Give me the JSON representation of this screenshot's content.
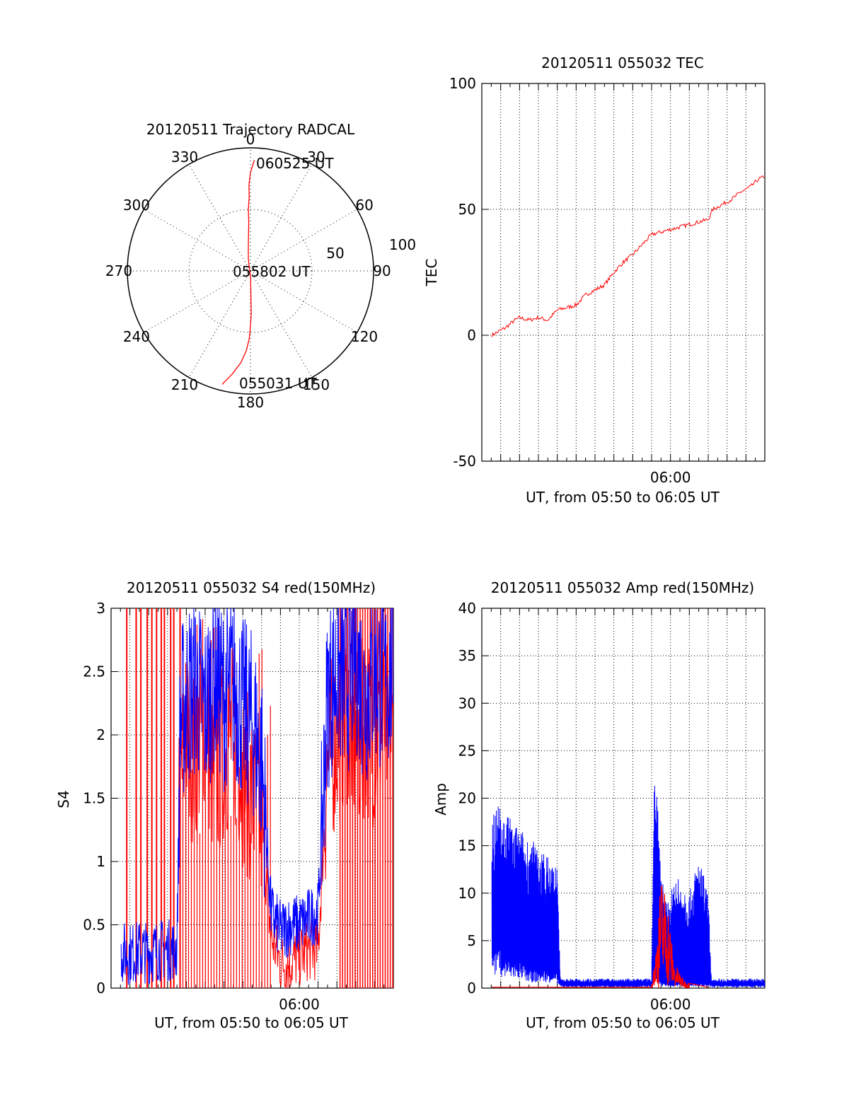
{
  "colors": {
    "red": "#ff0000",
    "blue": "#0000ff",
    "axis": "#000000",
    "grid": "#000000",
    "background": "#ffffff"
  },
  "chart_data": [
    {
      "id": "polar",
      "type": "scatter",
      "title": "20120511 Trajectory RADCAL",
      "projection": "polar",
      "azimuth_labels": [
        "0",
        "30",
        "60",
        "90",
        "120",
        "150",
        "180",
        "210",
        "240",
        "270",
        "300",
        "330"
      ],
      "radial_labels": [
        "50",
        "100"
      ],
      "radial_range": [
        0,
        100
      ],
      "trajectory_label_end": "060525 UT",
      "trajectory_label_mid": "055802 UT",
      "trajectory_label_start": "055031 UT",
      "series": [
        {
          "color": "red",
          "points": [
            [
              194,
              95
            ],
            [
              190,
              85
            ],
            [
              186,
              75
            ],
            [
              183,
              65
            ],
            [
              181,
              55
            ],
            [
              180,
              45
            ],
            [
              179,
              35
            ],
            [
              179,
              25
            ],
            [
              179,
              15
            ],
            [
              179,
              5
            ],
            [
              180,
              5
            ],
            [
              350,
              10
            ],
            [
              355,
              20
            ],
            [
              357,
              30
            ],
            [
              358,
              40
            ],
            [
              358,
              50
            ],
            [
              359,
              60
            ],
            [
              359,
              70
            ],
            [
              0,
              80
            ],
            [
              2,
              90
            ]
          ]
        }
      ]
    },
    {
      "id": "tec",
      "type": "line",
      "title": "20120511 055032 TEC",
      "ylabel": "TEC",
      "xlabel": "UT, from 05:50 to 06:05 UT",
      "xlim": [
        "05:50",
        "06:05"
      ],
      "ylim": [
        -50,
        100
      ],
      "xtick_labels": [
        "06:00"
      ],
      "ytick_labels": [
        "-50",
        "0",
        "50",
        "100"
      ],
      "grid": true,
      "series": [
        {
          "color": "red",
          "x": [
            "05:50:32",
            "05:51:15",
            "05:51:45",
            "05:52:00",
            "05:52:30",
            "05:53:00",
            "05:53:30",
            "05:54:00",
            "05:54:30",
            "05:55:00",
            "05:55:30",
            "05:56:00",
            "05:56:30",
            "05:57:00",
            "05:57:30",
            "05:58:00",
            "05:58:30",
            "05:59:00",
            "05:59:30",
            "06:00:00",
            "06:01:00",
            "06:02:00",
            "06:02:15",
            "06:02:45",
            "06:03:15",
            "06:03:45",
            "06:04:15",
            "06:04:40",
            "06:05:00"
          ],
          "values": [
            0,
            3,
            6,
            7,
            6,
            7,
            6,
            10,
            11,
            12,
            16,
            18,
            20,
            25,
            29,
            32,
            36,
            40,
            41,
            42,
            44,
            46,
            50,
            52,
            54,
            57,
            59,
            62,
            63
          ]
        }
      ]
    },
    {
      "id": "s4",
      "type": "line",
      "title": "20120511 055032 S4 red(150MHz)",
      "ylabel": "S4",
      "xlabel": "UT, from 05:50 to 06:05 UT",
      "xlim": [
        "05:50",
        "06:05"
      ],
      "ylim": [
        0,
        3
      ],
      "xtick_labels": [
        "06:00"
      ],
      "ytick_labels": [
        "0",
        "0.5",
        "1",
        "1.5",
        "2",
        "2.5",
        "3"
      ],
      "grid": true,
      "series": [
        {
          "name": "",
          "color": "red",
          "spike_times": [
            "05:50:50",
            "05:51:20",
            "05:51:35",
            "05:51:55",
            "05:52:10",
            "05:52:25",
            "05:52:40",
            "05:52:50",
            "05:53:10",
            "05:53:20",
            "05:53:40"
          ],
          "x": [
            "05:53:35",
            "05:54:00",
            "05:54:30",
            "05:55:00",
            "05:55:30",
            "05:56:00",
            "05:56:30",
            "05:57:00",
            "05:57:30",
            "05:58:00",
            "05:58:30",
            "05:59:00",
            "05:59:30",
            "06:00:00",
            "06:00:30",
            "06:01:00",
            "06:01:30",
            "06:02:00",
            "06:02:30",
            "06:03:00",
            "06:03:30",
            "06:04:00",
            "06:04:30",
            "06:05:00"
          ],
          "values": [
            1.5,
            2.0,
            1.8,
            2.2,
            1.6,
            1.9,
            2.0,
            1.7,
            1.5,
            1.3,
            0.4,
            0.2,
            0.2,
            0.25,
            0.3,
            0.3,
            1.8,
            2.0,
            2.2,
            1.9,
            2.1,
            2.0,
            2.1,
            1.9
          ]
        },
        {
          "name": "",
          "color": "blue",
          "x": [
            "05:50:32",
            "05:51:00",
            "05:51:30",
            "05:52:00",
            "05:52:30",
            "05:53:00",
            "05:53:30",
            "05:53:40",
            "05:54:00",
            "05:54:30",
            "05:55:00",
            "05:55:30",
            "05:56:00",
            "05:56:30",
            "05:57:00",
            "05:57:30",
            "05:58:00",
            "05:58:30",
            "05:59:00",
            "05:59:30",
            "06:00:00",
            "06:00:30",
            "06:01:00",
            "06:01:30",
            "06:02:00",
            "06:02:30",
            "06:03:00",
            "06:03:30",
            "06:04:00",
            "06:04:30",
            "06:05:00"
          ],
          "values": [
            0.28,
            0.27,
            0.29,
            0.28,
            0.3,
            0.3,
            0.31,
            2.1,
            2.3,
            2.4,
            2.2,
            2.5,
            2.3,
            2.4,
            2.2,
            2.1,
            1.8,
            0.6,
            0.45,
            0.5,
            0.5,
            0.55,
            0.6,
            2.3,
            2.5,
            2.4,
            2.6,
            2.3,
            2.5,
            2.4,
            2.5
          ]
        }
      ]
    },
    {
      "id": "amp",
      "type": "line",
      "title": "20120511 055032 Amp red(150MHz)",
      "ylabel": "Amp",
      "xlabel": "UT, from 05:50 to 06:05 UT",
      "xlim": [
        "05:50",
        "06:05"
      ],
      "ylim": [
        0,
        40
      ],
      "xtick_labels": [
        "06:00"
      ],
      "ytick_labels": [
        "0",
        "5",
        "10",
        "15",
        "20",
        "25",
        "30",
        "35",
        "40"
      ],
      "grid": true,
      "series": [
        {
          "name": "",
          "color": "blue",
          "x": [
            "05:50:32",
            "05:51:00",
            "05:51:30",
            "05:52:00",
            "05:52:30",
            "05:53:00",
            "05:53:30",
            "05:54:00",
            "05:54:10",
            "05:55:00",
            "05:56:00",
            "05:57:00",
            "05:58:00",
            "05:58:30",
            "05:59:00",
            "05:59:10",
            "05:59:30",
            "05:59:50",
            "06:00:10",
            "06:00:30",
            "06:01:00",
            "06:01:30",
            "06:02:00",
            "06:02:10",
            "06:03:00",
            "06:04:00",
            "06:05:00"
          ],
          "upper": [
            20,
            19,
            18,
            17,
            16,
            15,
            14,
            13,
            1,
            1,
            1,
            1,
            1,
            1,
            1,
            25,
            12,
            9,
            11,
            12,
            10,
            14,
            10,
            1,
            1,
            1,
            1
          ],
          "lower": [
            5,
            4,
            3,
            3,
            2,
            2,
            2,
            1.5,
            0.3,
            0.3,
            0.3,
            0.3,
            0.3,
            0.3,
            0.3,
            2,
            0.5,
            0.5,
            0.5,
            0.5,
            0.5,
            0.5,
            0.5,
            0.3,
            0.3,
            0.3,
            0.3
          ]
        },
        {
          "name": "",
          "color": "red",
          "x": [
            "05:50:32",
            "05:54:00",
            "05:59:00",
            "05:59:15",
            "05:59:30",
            "05:59:50",
            "06:00:10",
            "06:00:40",
            "06:01:00",
            "06:02:00"
          ],
          "values": [
            0.1,
            0.1,
            0.1,
            5,
            12,
            10,
            3,
            1,
            0.5,
            0.1
          ]
        }
      ]
    }
  ]
}
